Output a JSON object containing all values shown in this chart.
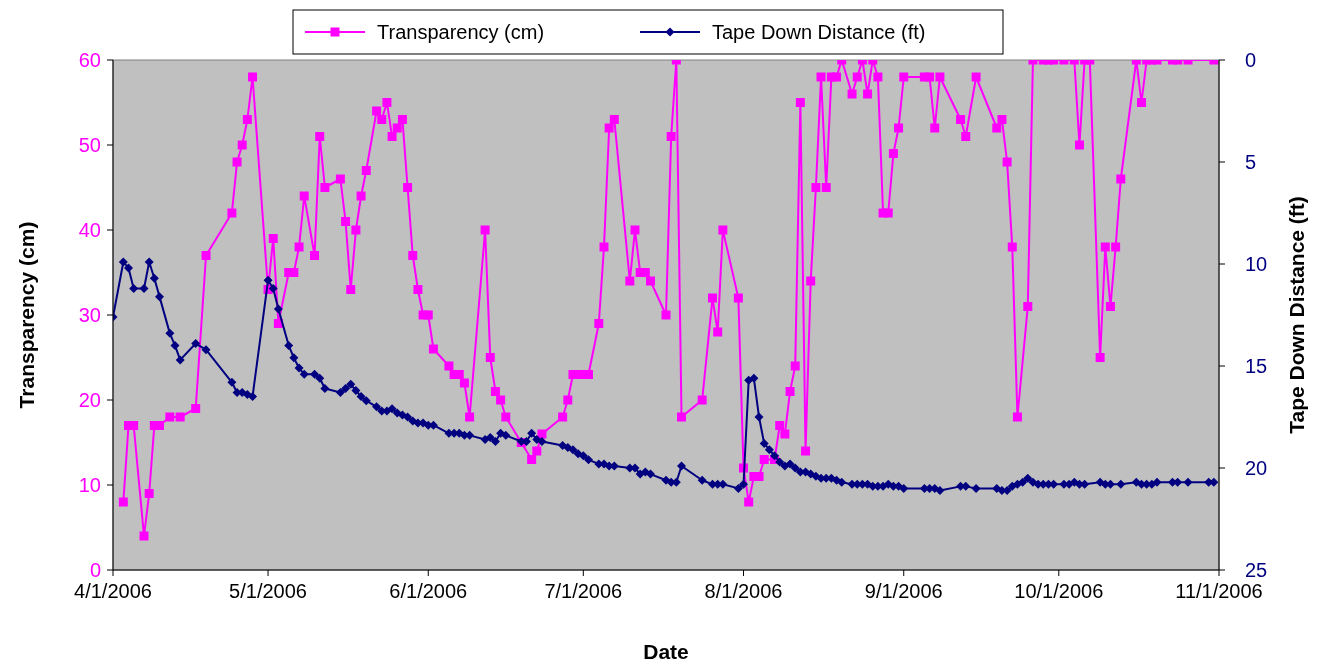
{
  "chart_data": {
    "type": "line",
    "xlabel": "Date",
    "ylabel": "Transparency (cm)",
    "y2label": "Tape Down Distance (ft)",
    "xlim": [
      "2006-04-01",
      "2006-11-01"
    ],
    "xticks": [
      {
        "value": "2006-04-01",
        "label": "4/1/2006"
      },
      {
        "value": "2006-05-01",
        "label": "5/1/2006"
      },
      {
        "value": "2006-06-01",
        "label": "6/1/2006"
      },
      {
        "value": "2006-07-01",
        "label": "7/1/2006"
      },
      {
        "value": "2006-08-01",
        "label": "8/1/2006"
      },
      {
        "value": "2006-09-01",
        "label": "9/1/2006"
      },
      {
        "value": "2006-10-01",
        "label": "10/1/2006"
      },
      {
        "value": "2006-11-01",
        "label": "11/1/2006"
      }
    ],
    "ylim": [
      0,
      60
    ],
    "yticks": [
      0,
      10,
      20,
      30,
      40,
      50,
      60
    ],
    "y2lim": [
      25,
      0
    ],
    "y2ticks": [
      0,
      5,
      10,
      15,
      20,
      25
    ],
    "grid": false,
    "legend": "top",
    "line_style": "solid",
    "series": [
      {
        "name": "Transparency (cm)",
        "color": "#ff00ff",
        "marker": "square",
        "x": [
          "2006-04-03",
          "2006-04-04",
          "2006-04-05",
          "2006-04-07",
          "2006-04-08",
          "2006-04-09",
          "2006-04-10",
          "2006-04-12",
          "2006-04-14",
          "2006-04-17",
          "2006-04-19",
          "2006-04-24",
          "2006-04-25",
          "2006-04-26",
          "2006-04-27",
          "2006-04-28",
          "2006-05-01",
          "2006-05-02",
          "2006-05-03",
          "2006-05-05",
          "2006-05-06",
          "2006-05-07",
          "2006-05-08",
          "2006-05-10",
          "2006-05-11",
          "2006-05-12",
          "2006-05-15",
          "2006-05-16",
          "2006-05-17",
          "2006-05-18",
          "2006-05-19",
          "2006-05-20",
          "2006-05-22",
          "2006-05-23",
          "2006-05-24",
          "2006-05-25",
          "2006-05-26",
          "2006-05-27",
          "2006-05-28",
          "2006-05-29",
          "2006-05-30",
          "2006-05-31",
          "2006-06-01",
          "2006-06-02",
          "2006-06-05",
          "2006-06-06",
          "2006-06-07",
          "2006-06-08",
          "2006-06-09",
          "2006-06-12",
          "2006-06-13",
          "2006-06-14",
          "2006-06-15",
          "2006-06-16",
          "2006-06-19",
          "2006-06-21",
          "2006-06-22",
          "2006-06-23",
          "2006-06-27",
          "2006-06-28",
          "2006-06-29",
          "2006-06-30",
          "2006-07-01",
          "2006-07-02",
          "2006-07-04",
          "2006-07-05",
          "2006-07-06",
          "2006-07-07",
          "2006-07-10",
          "2006-07-11",
          "2006-07-12",
          "2006-07-13",
          "2006-07-14",
          "2006-07-17",
          "2006-07-18",
          "2006-07-19",
          "2006-07-20",
          "2006-07-24",
          "2006-07-26",
          "2006-07-27",
          "2006-07-28",
          "2006-07-31",
          "2006-08-01",
          "2006-08-02",
          "2006-08-03",
          "2006-08-04",
          "2006-08-05",
          "2006-08-07",
          "2006-08-08",
          "2006-08-09",
          "2006-08-10",
          "2006-08-11",
          "2006-08-12",
          "2006-08-13",
          "2006-08-14",
          "2006-08-15",
          "2006-08-16",
          "2006-08-17",
          "2006-08-18",
          "2006-08-19",
          "2006-08-20",
          "2006-08-22",
          "2006-08-23",
          "2006-08-24",
          "2006-08-25",
          "2006-08-26",
          "2006-08-27",
          "2006-08-28",
          "2006-08-29",
          "2006-08-30",
          "2006-08-31",
          "2006-09-01",
          "2006-09-05",
          "2006-09-06",
          "2006-09-07",
          "2006-09-08",
          "2006-09-12",
          "2006-09-13",
          "2006-09-15",
          "2006-09-19",
          "2006-09-20",
          "2006-09-21",
          "2006-09-22",
          "2006-09-23",
          "2006-09-25",
          "2006-09-26",
          "2006-09-28",
          "2006-09-29",
          "2006-09-30",
          "2006-10-02",
          "2006-10-04",
          "2006-10-05",
          "2006-10-06",
          "2006-10-07",
          "2006-10-09",
          "2006-10-10",
          "2006-10-11",
          "2006-10-12",
          "2006-10-13",
          "2006-10-16",
          "2006-10-17",
          "2006-10-18",
          "2006-10-19",
          "2006-10-20",
          "2006-10-23",
          "2006-10-24",
          "2006-10-26",
          "2006-10-31"
        ],
        "values": [
          8,
          17,
          17,
          4,
          9,
          17,
          17,
          18,
          18,
          19,
          37,
          42,
          48,
          50,
          53,
          58,
          33,
          39,
          29,
          35,
          35,
          38,
          44,
          37,
          51,
          45,
          46,
          41,
          33,
          40,
          44,
          47,
          54,
          53,
          55,
          51,
          52,
          53,
          45,
          37,
          33,
          30,
          30,
          26,
          24,
          23,
          23,
          22,
          18,
          40,
          25,
          21,
          20,
          18,
          15,
          13,
          14,
          16,
          18,
          20,
          23,
          23,
          23,
          23,
          29,
          38,
          52,
          53,
          34,
          40,
          35,
          35,
          34,
          30,
          51,
          60,
          18,
          20,
          32,
          28,
          40,
          32,
          12,
          8,
          11,
          11,
          13,
          13,
          17,
          16,
          21,
          24,
          55,
          14,
          34,
          45,
          58,
          45,
          58,
          58,
          60,
          56,
          58,
          60,
          56,
          60,
          58,
          42,
          42,
          49,
          52,
          58,
          58,
          58,
          52,
          58,
          53,
          51,
          58,
          52,
          53,
          48,
          38,
          18,
          31,
          60,
          60,
          60,
          60,
          60,
          60,
          50,
          60,
          60,
          25,
          38,
          31,
          38,
          46,
          60,
          55,
          60,
          60,
          60,
          60,
          60,
          60,
          60
        ]
      },
      {
        "name": "Tape Down Distance (ft)",
        "color": "#000080",
        "marker": "diamond",
        "axis": "y2",
        "x": [
          "2006-04-01",
          "2006-04-03",
          "2006-04-04",
          "2006-04-05",
          "2006-04-07",
          "2006-04-08",
          "2006-04-09",
          "2006-04-10",
          "2006-04-12",
          "2006-04-13",
          "2006-04-14",
          "2006-04-17",
          "2006-04-19",
          "2006-04-24",
          "2006-04-25",
          "2006-04-26",
          "2006-04-27",
          "2006-04-28",
          "2006-05-01",
          "2006-05-02",
          "2006-05-03",
          "2006-05-05",
          "2006-05-06",
          "2006-05-07",
          "2006-05-08",
          "2006-05-10",
          "2006-05-11",
          "2006-05-12",
          "2006-05-15",
          "2006-05-16",
          "2006-05-17",
          "2006-05-18",
          "2006-05-19",
          "2006-05-20",
          "2006-05-22",
          "2006-05-23",
          "2006-05-24",
          "2006-05-25",
          "2006-05-26",
          "2006-05-27",
          "2006-05-28",
          "2006-05-29",
          "2006-05-30",
          "2006-05-31",
          "2006-06-01",
          "2006-06-02",
          "2006-06-05",
          "2006-06-06",
          "2006-06-07",
          "2006-06-08",
          "2006-06-09",
          "2006-06-12",
          "2006-06-13",
          "2006-06-14",
          "2006-06-15",
          "2006-06-16",
          "2006-06-19",
          "2006-06-20",
          "2006-06-21",
          "2006-06-22",
          "2006-06-23",
          "2006-06-27",
          "2006-06-28",
          "2006-06-29",
          "2006-06-30",
          "2006-07-01",
          "2006-07-02",
          "2006-07-04",
          "2006-07-05",
          "2006-07-06",
          "2006-07-07",
          "2006-07-10",
          "2006-07-11",
          "2006-07-12",
          "2006-07-13",
          "2006-07-14",
          "2006-07-17",
          "2006-07-18",
          "2006-07-19",
          "2006-07-20",
          "2006-07-24",
          "2006-07-26",
          "2006-07-27",
          "2006-07-28",
          "2006-07-31",
          "2006-08-01",
          "2006-08-02",
          "2006-08-03",
          "2006-08-04",
          "2006-08-05",
          "2006-08-06",
          "2006-08-07",
          "2006-08-08",
          "2006-08-09",
          "2006-08-10",
          "2006-08-11",
          "2006-08-12",
          "2006-08-13",
          "2006-08-14",
          "2006-08-15",
          "2006-08-16",
          "2006-08-17",
          "2006-08-18",
          "2006-08-19",
          "2006-08-20",
          "2006-08-22",
          "2006-08-23",
          "2006-08-24",
          "2006-08-25",
          "2006-08-26",
          "2006-08-27",
          "2006-08-28",
          "2006-08-29",
          "2006-08-30",
          "2006-08-31",
          "2006-09-01",
          "2006-09-05",
          "2006-09-06",
          "2006-09-07",
          "2006-09-08",
          "2006-09-12",
          "2006-09-13",
          "2006-09-15",
          "2006-09-19",
          "2006-09-20",
          "2006-09-21",
          "2006-09-22",
          "2006-09-23",
          "2006-09-24",
          "2006-09-25",
          "2006-09-26",
          "2006-09-27",
          "2006-09-28",
          "2006-09-29",
          "2006-09-30",
          "2006-10-02",
          "2006-10-03",
          "2006-10-04",
          "2006-10-05",
          "2006-10-06",
          "2006-10-09",
          "2006-10-10",
          "2006-10-11",
          "2006-10-13",
          "2006-10-16",
          "2006-10-17",
          "2006-10-18",
          "2006-10-19",
          "2006-10-20",
          "2006-10-23",
          "2006-10-24",
          "2006-10-26",
          "2006-10-30",
          "2006-10-31"
        ],
        "values": [
          12.6,
          9.9,
          10.2,
          11.2,
          11.2,
          9.9,
          10.7,
          11.6,
          13.4,
          14.0,
          14.7,
          13.9,
          14.2,
          15.8,
          16.3,
          16.3,
          16.4,
          16.5,
          10.8,
          11.2,
          12.2,
          14.0,
          14.6,
          15.1,
          15.4,
          15.4,
          15.6,
          16.1,
          16.3,
          16.1,
          15.9,
          16.2,
          16.5,
          16.7,
          17.0,
          17.2,
          17.2,
          17.1,
          17.3,
          17.4,
          17.5,
          17.7,
          17.8,
          17.8,
          17.9,
          17.9,
          18.3,
          18.3,
          18.3,
          18.4,
          18.4,
          18.6,
          18.5,
          18.7,
          18.3,
          18.4,
          18.7,
          18.7,
          18.3,
          18.6,
          18.7,
          18.9,
          19.0,
          19.1,
          19.3,
          19.4,
          19.6,
          19.8,
          19.8,
          19.9,
          19.9,
          20.0,
          20.0,
          20.3,
          20.2,
          20.3,
          20.6,
          20.7,
          20.7,
          19.9,
          20.6,
          20.8,
          20.8,
          20.8,
          21.0,
          20.8,
          15.7,
          15.6,
          17.5,
          18.8,
          19.1,
          19.4,
          19.7,
          19.9,
          19.8,
          20.0,
          20.2,
          20.2,
          20.3,
          20.4,
          20.5,
          20.5,
          20.5,
          20.6,
          20.7,
          20.8,
          20.8,
          20.8,
          20.8,
          20.9,
          20.9,
          20.9,
          20.8,
          20.9,
          20.9,
          21.0,
          21.0,
          21.0,
          21.0,
          21.1,
          20.9,
          20.9,
          21.0,
          21.0,
          21.1,
          21.1,
          20.9,
          20.8,
          20.7,
          20.5,
          20.7,
          20.8,
          20.8,
          20.8,
          20.8,
          20.8,
          20.8,
          20.7,
          20.8,
          20.8,
          20.7,
          20.8,
          20.8,
          20.8,
          20.7,
          20.8,
          20.8,
          20.8,
          20.7,
          20.7,
          20.7,
          20.7,
          20.7,
          20.7
        ]
      }
    ]
  }
}
